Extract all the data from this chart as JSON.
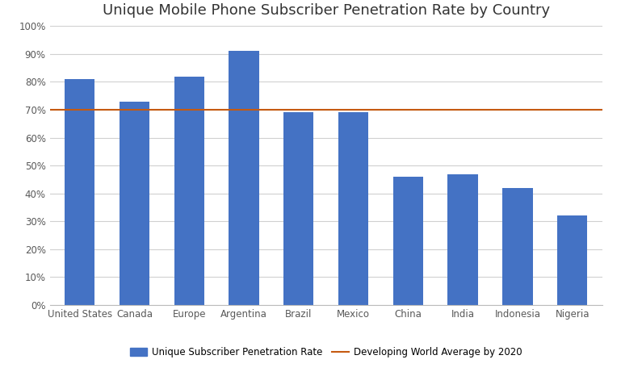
{
  "title": "Unique Mobile Phone Subscriber Penetration Rate by Country",
  "categories": [
    "United States",
    "Canada",
    "Europe",
    "Argentina",
    "Brazil",
    "Mexico",
    "China",
    "India",
    "Indonesia",
    "Nigeria"
  ],
  "values": [
    0.81,
    0.73,
    0.82,
    0.91,
    0.69,
    0.69,
    0.46,
    0.47,
    0.42,
    0.32
  ],
  "bar_color": "#4472C4",
  "line_value": 0.7,
  "line_color": "#C55A11",
  "legend_bar_label": "Unique Subscriber Penetration Rate",
  "legend_line_label": "Developing World Average by 2020",
  "ylim": [
    0,
    1.0
  ],
  "yticks": [
    0.0,
    0.1,
    0.2,
    0.3,
    0.4,
    0.5,
    0.6,
    0.7,
    0.8,
    0.9,
    1.0
  ],
  "ytick_labels": [
    "0%",
    "10%",
    "20%",
    "30%",
    "40%",
    "50%",
    "60%",
    "70%",
    "80%",
    "90%",
    "100%"
  ],
  "background_color": "#FFFFFF",
  "grid_color": "#D0D0D0",
  "title_fontsize": 13,
  "tick_fontsize": 8.5,
  "legend_fontsize": 8.5,
  "tick_color": "#595959",
  "spine_color": "#BBBBBB"
}
